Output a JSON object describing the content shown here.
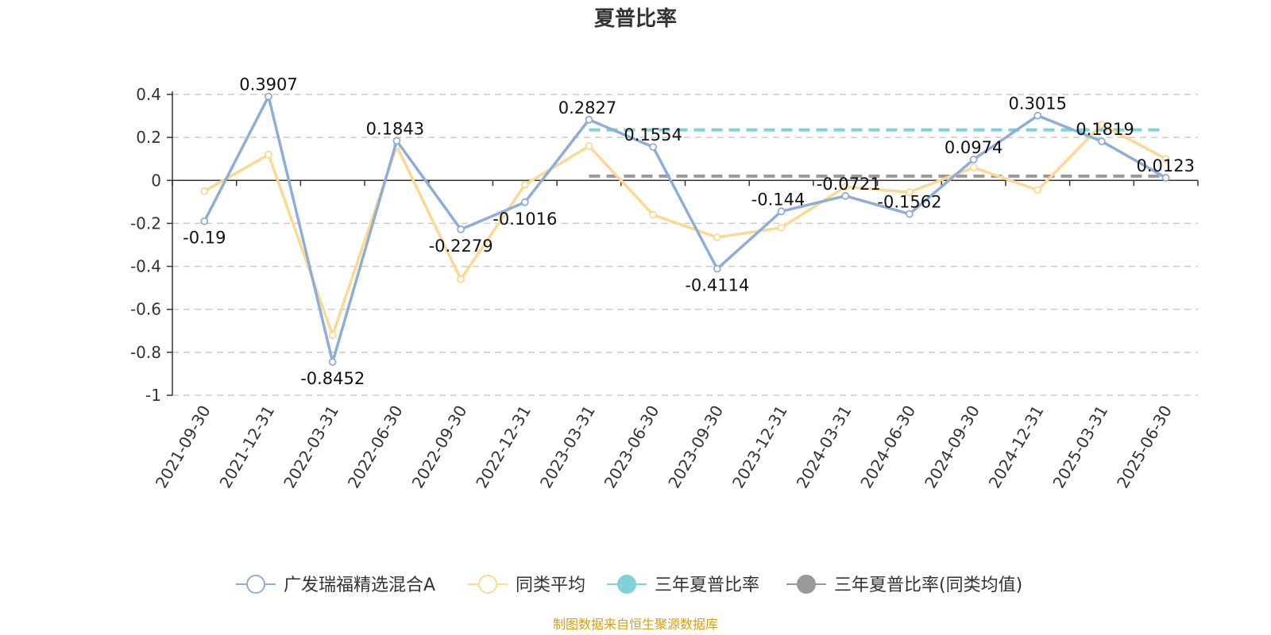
{
  "chart_data": {
    "type": "line",
    "title": "夏普比率",
    "categories": [
      "2021-09-30",
      "2021-12-31",
      "2022-03-31",
      "2022-06-30",
      "2022-09-30",
      "2022-12-31",
      "2023-03-31",
      "2023-06-30",
      "2023-09-30",
      "2023-12-31",
      "2024-03-31",
      "2024-06-30",
      "2024-09-30",
      "2024-12-31",
      "2025-03-31",
      "2025-06-30"
    ],
    "y_ticks": [
      "0.4",
      "0.2",
      "0",
      "-0.2",
      "-0.4",
      "-0.6",
      "-0.8",
      "-1"
    ],
    "ylim": [
      -1,
      0.4
    ],
    "grid": true,
    "legend_position": "bottom",
    "series": [
      {
        "name": "广发瑞福精选混合A",
        "color": "#8eaed8",
        "values": [
          -0.19,
          0.3907,
          -0.8452,
          0.1843,
          -0.2279,
          -0.1016,
          0.2827,
          0.1554,
          -0.4114,
          -0.144,
          -0.0721,
          -0.1562,
          0.0974,
          0.3015,
          0.1819,
          0.0123
        ],
        "labels": [
          "-0.19",
          "0.3907",
          "-0.8452",
          "0.1843",
          "-0.2279",
          "-0.1016",
          "0.2827",
          "0.1554",
          "-0.4114",
          "-0.144",
          "-0.0721",
          "-0.1562",
          "0.0974",
          "0.3015",
          "0.1819",
          "0.0123"
        ]
      },
      {
        "name": "同类平均",
        "color": "#fcd993",
        "values": [
          -0.05,
          0.12,
          -0.72,
          0.16,
          -0.46,
          -0.02,
          0.16,
          -0.16,
          -0.265,
          -0.22,
          -0.03,
          -0.055,
          0.06,
          -0.045,
          0.26,
          0.1
        ]
      }
    ],
    "reference_lines": [
      {
        "name": "三年夏普比率",
        "color": "#7fd3d8",
        "value": 0.235,
        "from_category": "2023-03-31",
        "to_category": "2025-06-30"
      },
      {
        "name": "三年夏普比率(同类均值)",
        "color": "#999999",
        "value": 0.02,
        "from_category": "2023-03-31",
        "to_category": "2025-06-30"
      }
    ],
    "source_note": "制图数据来自恒生聚源数据库"
  }
}
